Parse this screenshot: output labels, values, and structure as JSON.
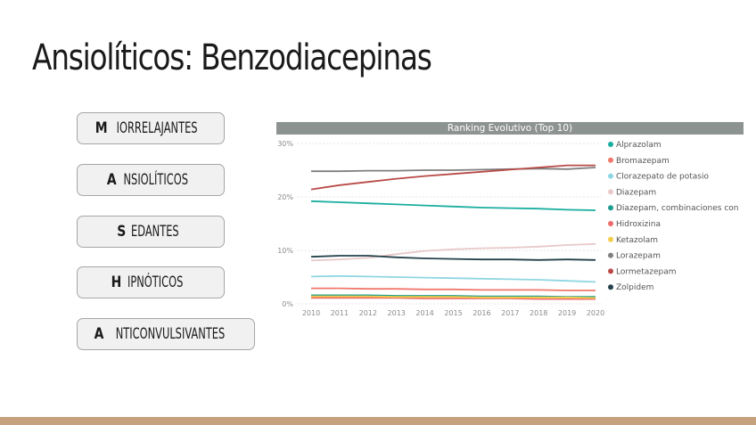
{
  "slide": {
    "title": "Ansiolíticos: Benzodiacepinas",
    "categories": [
      {
        "first": "M",
        "rest": "IORRELAJANTES"
      },
      {
        "first": "A",
        "rest": "NSIOLÍTICOS"
      },
      {
        "first": "S",
        "rest": "EDANTES"
      },
      {
        "first": "H",
        "rest": "IPNÓTICOS"
      },
      {
        "first": "A",
        "rest": "NTICONVULSIVANTES"
      }
    ]
  },
  "chart_data": {
    "type": "line",
    "title": "Ranking Evolutivo (Top 10)",
    "x": [
      2010,
      2011,
      2012,
      2013,
      2014,
      2015,
      2016,
      2017,
      2018,
      2019,
      2020
    ],
    "xtick_labels": [
      "2010",
      "2011",
      "2012",
      "2013",
      "2014",
      "2015",
      "2016",
      "2017",
      "2018",
      "2019",
      "2020"
    ],
    "ylim": [
      0,
      30
    ],
    "yticks": [
      0,
      10,
      20,
      30
    ],
    "ytick_labels": [
      "0%",
      "10%",
      "20%",
      "30%"
    ],
    "grid": true,
    "legend_position": "right",
    "series": [
      {
        "name": "Alprazolam",
        "color": "#1aaea0",
        "values": [
          19.2,
          19.0,
          18.8,
          18.6,
          18.4,
          18.2,
          18.0,
          17.9,
          17.8,
          17.6,
          17.5
        ]
      },
      {
        "name": "Bromazepam",
        "color": "#f0786c",
        "values": [
          2.9,
          2.9,
          2.8,
          2.8,
          2.7,
          2.7,
          2.6,
          2.6,
          2.6,
          2.5,
          2.5
        ]
      },
      {
        "name": "Clorazepato de potasio",
        "color": "#8fd6e1",
        "values": [
          5.1,
          5.2,
          5.1,
          5.0,
          4.9,
          4.8,
          4.7,
          4.6,
          4.5,
          4.3,
          4.1
        ]
      },
      {
        "name": "Diazepam",
        "color": "#e8c9ca",
        "values": [
          8.1,
          8.3,
          8.6,
          9.3,
          9.9,
          10.2,
          10.4,
          10.5,
          10.7,
          11.0,
          11.2
        ]
      },
      {
        "name": "Diazepam, combinaciones con",
        "color": "#1e9e91",
        "values": [
          1.6,
          1.6,
          1.6,
          1.5,
          1.5,
          1.5,
          1.4,
          1.4,
          1.4,
          1.3,
          1.3
        ]
      },
      {
        "name": "Hidroxizina",
        "color": "#ee6c6c",
        "values": [
          1.1,
          1.1,
          1.1,
          1.1,
          1.0,
          1.0,
          1.0,
          1.0,
          0.9,
          0.9,
          0.9
        ]
      },
      {
        "name": "Ketazolam",
        "color": "#f2cc4a",
        "values": [
          1.4,
          1.4,
          1.4,
          1.3,
          1.3,
          1.3,
          1.2,
          1.2,
          1.2,
          1.2,
          1.1
        ]
      },
      {
        "name": "Lorazepam",
        "color": "#7f7f7f",
        "values": [
          24.8,
          24.8,
          24.9,
          24.9,
          25.0,
          25.0,
          25.1,
          25.2,
          25.3,
          25.2,
          25.5
        ]
      },
      {
        "name": "Lormetazepam",
        "color": "#b94a48",
        "values": [
          21.4,
          22.2,
          22.8,
          23.4,
          23.9,
          24.3,
          24.7,
          25.1,
          25.5,
          25.9,
          25.9
        ]
      },
      {
        "name": "Zolpidem",
        "color": "#24414b",
        "values": [
          8.8,
          9.0,
          9.0,
          8.7,
          8.5,
          8.4,
          8.3,
          8.3,
          8.2,
          8.3,
          8.2
        ]
      }
    ]
  }
}
